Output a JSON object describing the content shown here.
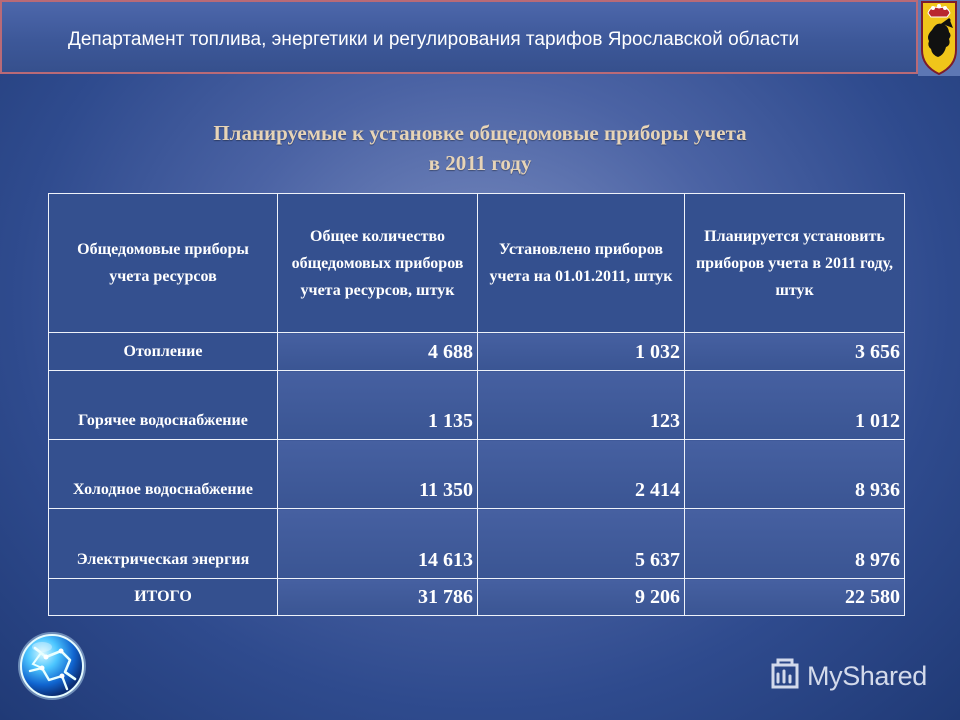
{
  "header": {
    "title": "Департамент топлива, энергетики и регулирования тарифов Ярославской области",
    "emblem_icon": "yaroslavl-region-coat-of-arms-icon"
  },
  "slide": {
    "title_line_1": "Планируемые к установке общедомовые приборы учета",
    "title_line_2": "в 2011 году"
  },
  "table": {
    "columns": [
      "Общедомовые приборы учета ресурсов",
      "Общее количество общедомовых приборов учета ресурсов, штук",
      "Установлено приборов учета на 01.01.2011, штук",
      "Планируется установить приборов учета в 2011 году, штук"
    ],
    "rows": [
      {
        "resource": "Отопление",
        "total": "4 688",
        "installed": "1 032",
        "planned": "3 656"
      },
      {
        "resource": "Горячее водоснабжение",
        "total": "1 135",
        "installed": "123",
        "planned": "1 012"
      },
      {
        "resource": "Холодное водоснабжение",
        "total": "11 350",
        "installed": "2 414",
        "planned": "8 936"
      },
      {
        "resource": "Электрическая энергия",
        "total": "14 613",
        "installed": "5 637",
        "planned": "8 976"
      },
      {
        "resource": "ИТОГО",
        "total": "31 786",
        "installed": "9 206",
        "planned": "22 580"
      }
    ]
  },
  "branding": {
    "globe_icon": "globe-icon",
    "watermark_icon": "myshared-logo-icon",
    "watermark_text": "MyShared"
  },
  "colors": {
    "background_dark": "#203a76",
    "background_mid": "#4b63a4",
    "background_light": "#7d8fc2",
    "header_border": "#b96a77",
    "title_text": "#e7d4b7",
    "table_text": "#ffffff"
  }
}
